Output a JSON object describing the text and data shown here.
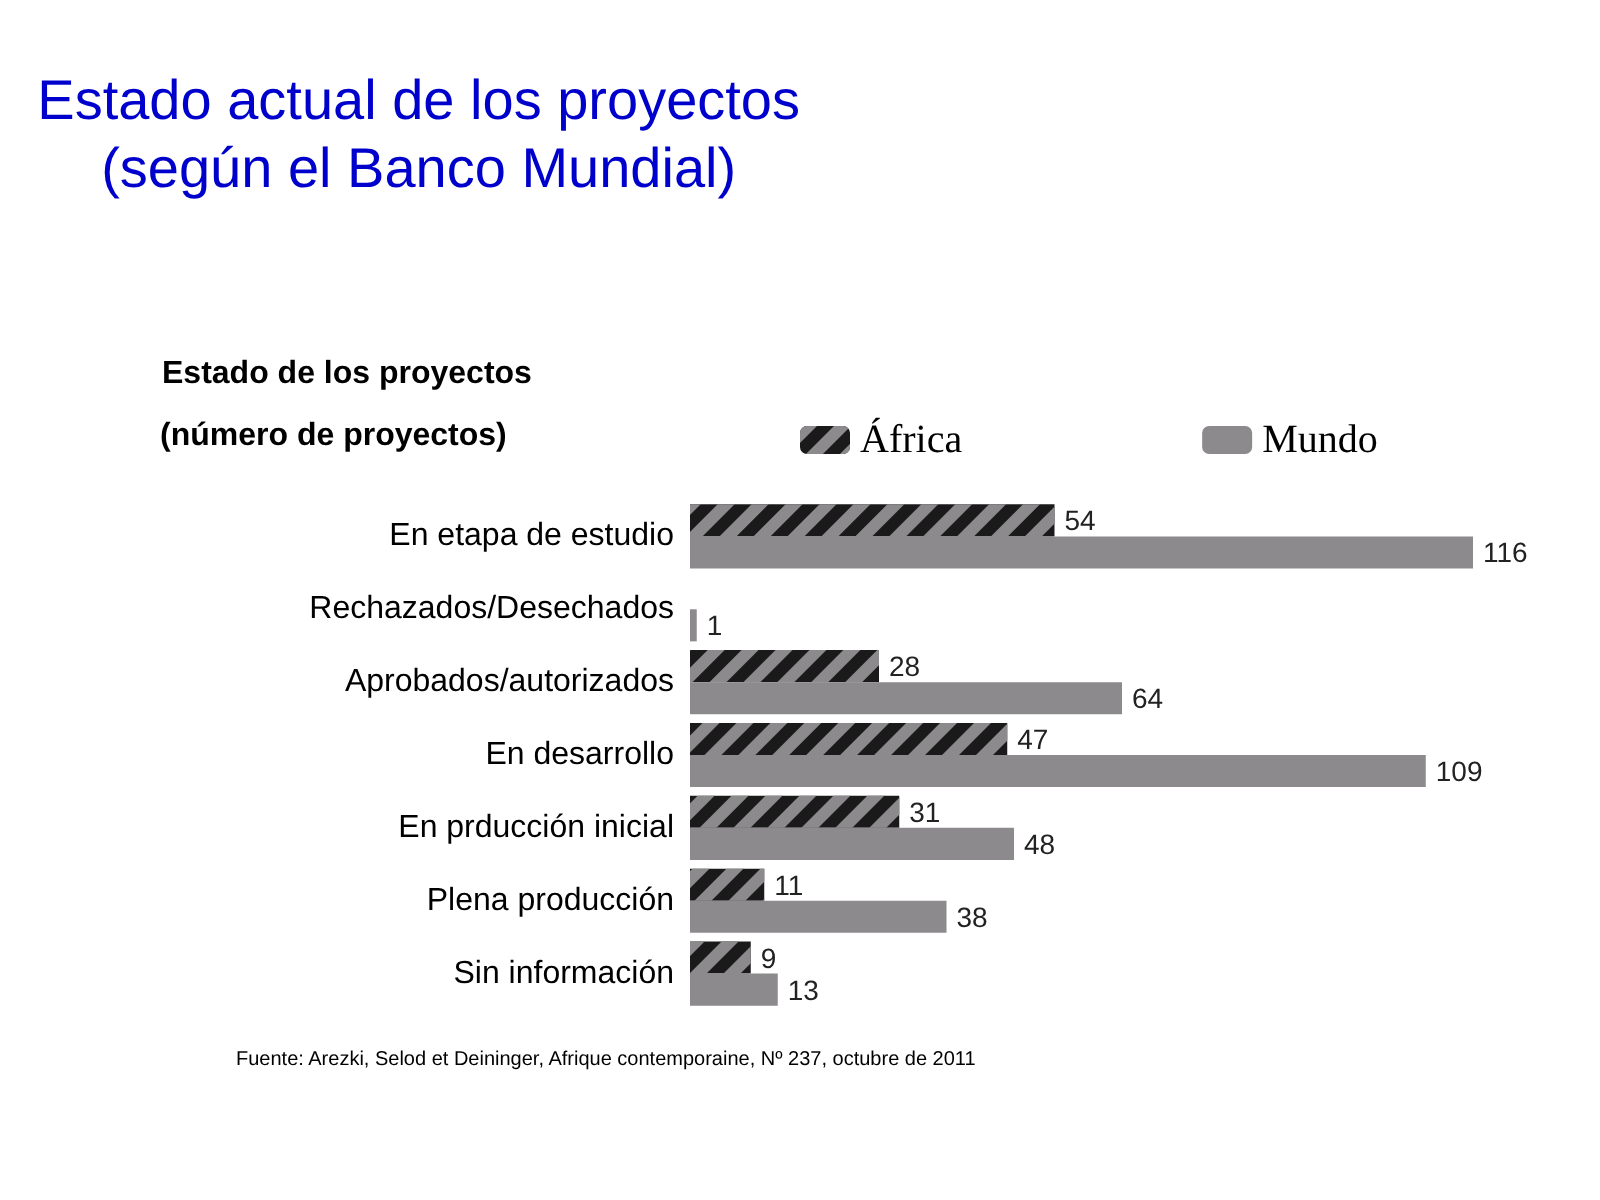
{
  "chart_data": {
    "type": "bar",
    "orientation": "horizontal",
    "title": "Estado actual de los proyectos\n(según el Banco Mundial)",
    "subtitle": "Estado de los proyectos",
    "categories": [
      "En etapa de estudio",
      "Rechazados/Desechados",
      "Aprobados/autorizados",
      "En desarrollo",
      "En prducción inicial",
      "Plena producción",
      "Sin información"
    ],
    "series": [
      {
        "name": "África",
        "color": "#1a1a1a",
        "values": [
          54,
          null,
          28,
          47,
          31,
          11,
          9
        ]
      },
      {
        "name": "Mundo",
        "color": "#8c8a8c",
        "values": [
          116,
          1,
          64,
          109,
          48,
          38,
          13
        ]
      }
    ],
    "data_labels": true,
    "legend": "top",
    "annotations": [
      "(número de proyectos)",
      "Fuente: Arezki, Selod et Deininger, Afrique contemporaine, Nº 237, octubre de 2011"
    ]
  }
}
